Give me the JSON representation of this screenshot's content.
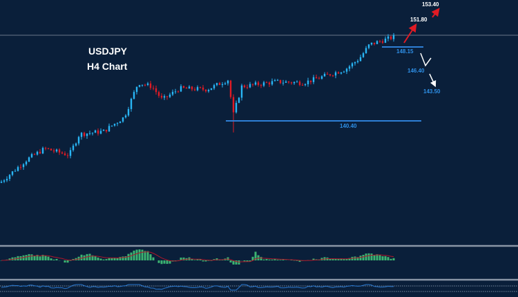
{
  "header": {
    "symbol": "USDJPY",
    "timeframe": "H4 Chart"
  },
  "chart_data": {
    "type": "candlestick",
    "title": "USDJPY H4 Chart",
    "close_path": [
      [
        0,
        133.9
      ],
      [
        40,
        136.4
      ],
      [
        65,
        137.5
      ],
      [
        100,
        136.8
      ],
      [
        115,
        139.0
      ],
      [
        150,
        139.3
      ],
      [
        180,
        140.8
      ],
      [
        200,
        144.4
      ],
      [
        220,
        144.0
      ],
      [
        235,
        142.6
      ],
      [
        260,
        143.8
      ],
      [
        300,
        143.7
      ],
      [
        330,
        144.7
      ],
      [
        338,
        141.1
      ],
      [
        350,
        144.0
      ],
      [
        400,
        144.5
      ],
      [
        440,
        144.4
      ],
      [
        470,
        145.1
      ],
      [
        500,
        145.8
      ],
      [
        520,
        146.9
      ],
      [
        535,
        148.4
      ],
      [
        570,
        149.2
      ]
    ],
    "levels": [
      {
        "label": "140.40",
        "value": 140.4,
        "color": "#2e7fd6"
      },
      {
        "label": "148.15",
        "value": 148.15,
        "color": "#2e7fd6"
      }
    ],
    "targets": [
      {
        "label": "151.80",
        "value": 151.8,
        "color": "#ffffff"
      },
      {
        "label": "153.40",
        "value": 153.4,
        "color": "#ffffff"
      },
      {
        "label": "146.40",
        "value": 146.4,
        "color": "#2e8fe6"
      },
      {
        "label": "143.50",
        "value": 143.5,
        "color": "#2e8fe6"
      }
    ],
    "colors": {
      "bull": "#29b6f6",
      "bear": "#e01b24",
      "background": "#0a1f3a",
      "histogram": "#3cb371",
      "signal": "#b0172a",
      "rsi": "#2a78d0"
    }
  }
}
